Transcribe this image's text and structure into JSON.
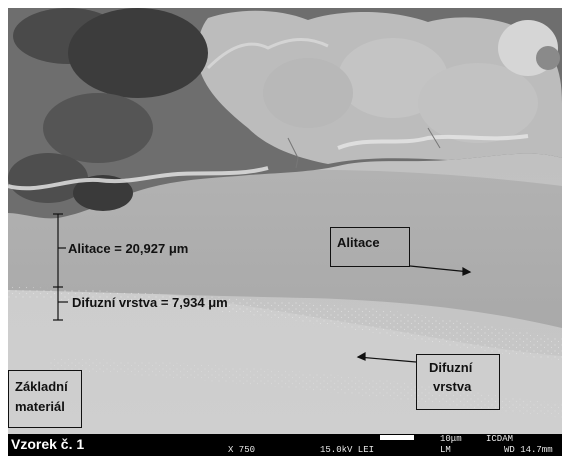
{
  "labels": {
    "alitace_thickness": "Alitace = 20,927 μm",
    "difuzni_thickness": "Difuzní vrstva = 7,934 μm",
    "alitace_box": "Alitace",
    "difuzni_box_line1": "Difuzní",
    "difuzni_box_line2": "vrstva",
    "zakladni_line1": "Základní",
    "zakladni_line2": "materiál"
  },
  "status_bar": {
    "sample": "Vzorek č. 1",
    "magnification": "X 750",
    "voltage": "15.0kV LEI",
    "scale": "10μm",
    "mode": "LM",
    "lab": "ICDAM",
    "wd": "WD 14.7mm"
  },
  "colors": {
    "background": "#ffffff",
    "status_bar": "#000000",
    "annotation": "#111111"
  }
}
